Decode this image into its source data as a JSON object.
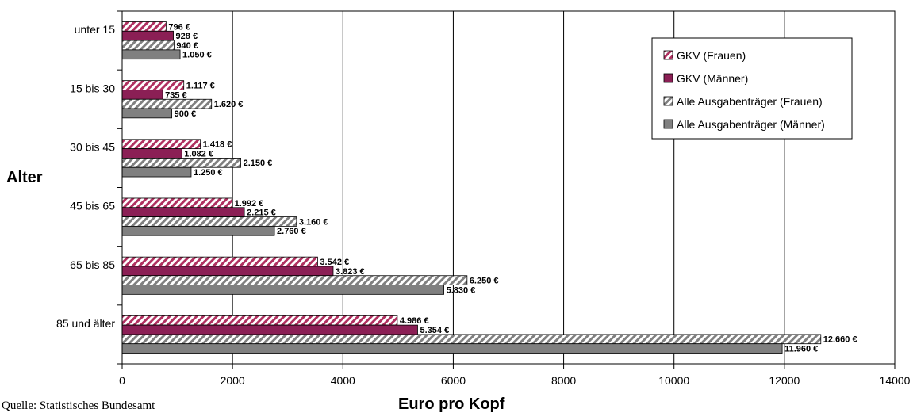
{
  "chart_data": {
    "type": "bar",
    "orientation": "horizontal",
    "categories": [
      "unter 15",
      "15 bis 30",
      "30 bis 45",
      "45 bis 65",
      "65 bis 85",
      "85 und älter"
    ],
    "series": [
      {
        "name": "GKV (Frauen)",
        "values": [
          796,
          1117,
          1418,
          1992,
          3542,
          4986
        ],
        "labels": [
          "796 €",
          "1.117 €",
          "1.418 €",
          "1.992 €",
          "3.542 €",
          "4.986 €"
        ],
        "color": "#b03060",
        "pattern": "diagonal-stripes"
      },
      {
        "name": "GKV (Männer)",
        "values": [
          928,
          735,
          1082,
          2215,
          3823,
          5354
        ],
        "labels": [
          "928 €",
          "735 €",
          "1.082 €",
          "2.215 €",
          "3.823 €",
          "5.354 €"
        ],
        "color": "#8b1f55",
        "pattern": "solid"
      },
      {
        "name": "Alle Ausgabenträger (Frauen)",
        "values": [
          940,
          1620,
          2150,
          3160,
          6250,
          12660
        ],
        "labels": [
          "940 €",
          "1.620 €",
          "2.150 €",
          "3.160 €",
          "6.250 €",
          "12.660 €"
        ],
        "color": "#808080",
        "pattern": "diagonal-stripes"
      },
      {
        "name": "Alle Ausgabenträger (Männer)",
        "values": [
          1050,
          900,
          1250,
          2760,
          5830,
          11960
        ],
        "labels": [
          "1.050 €",
          "900 €",
          "1.250 €",
          "2.760 €",
          "5.830 €",
          "11.960 €"
        ],
        "color": "#808080",
        "pattern": "solid"
      }
    ],
    "xlabel": "Euro pro Kopf",
    "ylabel": "Alter",
    "xlim": [
      0,
      14000
    ],
    "xticks": [
      "0",
      "2000",
      "4000",
      "6000",
      "8000",
      "10000",
      "12000",
      "14000"
    ],
    "grid": "vertical",
    "legend_position": "top-right"
  },
  "source_text": "Quelle: Statistisches Bundesamt"
}
